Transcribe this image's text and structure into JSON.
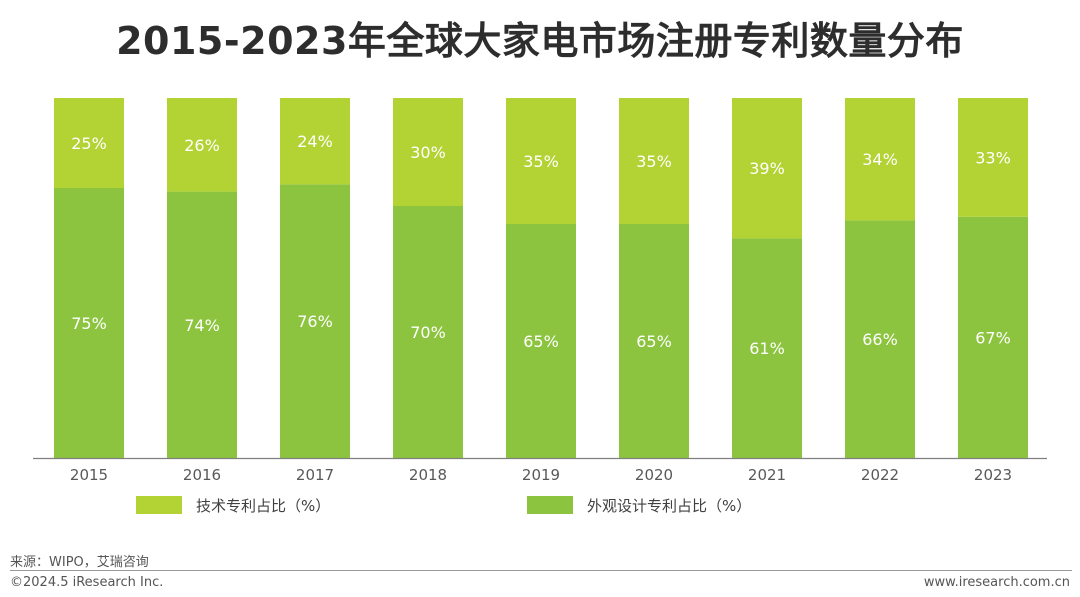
{
  "colors": {
    "tech": "#b3d334",
    "design": "#8cc43f",
    "label_text": "#ffffff",
    "axis": "#7f7f7f",
    "tick_text": "#595959"
  },
  "footer": {
    "source": "来源：WIPO，艾瑞咨询",
    "copyright": "©2024.5 iResearch Inc.",
    "website": "www.iresearch.com.cn"
  },
  "chart_data": {
    "type": "bar",
    "stacked": true,
    "title": "2015-2023年全球大家电市场注册专利数量分布",
    "xlabel": "",
    "ylabel": "",
    "ylim": [
      0,
      100
    ],
    "categories": [
      "2015",
      "2016",
      "2017",
      "2018",
      "2019",
      "2020",
      "2021",
      "2022",
      "2023"
    ],
    "series": [
      {
        "key": "design",
        "name": "外观设计专利占比（%）",
        "values": [
          75,
          74,
          76,
          70,
          65,
          65,
          61,
          66,
          67
        ],
        "labels": [
          "75%",
          "74%",
          "76%",
          "70%",
          "65%",
          "65%",
          "61%",
          "66%",
          "67%"
        ]
      },
      {
        "key": "tech",
        "name": "技术专利占比（%）",
        "values": [
          25,
          26,
          24,
          30,
          35,
          35,
          39,
          34,
          33
        ],
        "labels": [
          "25%",
          "26%",
          "24%",
          "30%",
          "35%",
          "35%",
          "39%",
          "34%",
          "33%"
        ]
      }
    ],
    "legend_order": [
      "tech",
      "design"
    ],
    "legend": "bottom"
  }
}
